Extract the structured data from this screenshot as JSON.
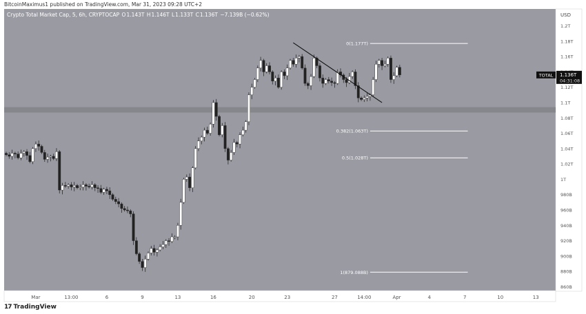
{
  "header": {
    "publisher": "BitcoinMaximus1 published on TradingView.com, Mar 31, 2023 09:28 UTC+2"
  },
  "legend": {
    "symbol": "Crypto Total Market Cap, 5, 6h, CRYPTOCAP",
    "open_label": "O",
    "open": "1.143T",
    "high_label": "H",
    "high": "1.146T",
    "low_label": "L",
    "low": "1.133T",
    "close_label": "C",
    "close": "1.136T",
    "change": "−7.139B (−0.62%)"
  },
  "footer": {
    "logo_icon": "tradingview-logo-icon",
    "brand": "TradingView"
  },
  "colors": {
    "background": "#9a9aa3",
    "up": "#ffffff",
    "down": "#222222",
    "support_band": "#82828a",
    "fib_line": "#ffffff"
  },
  "chart_data": {
    "type": "candlestick",
    "currency": "USD",
    "y_unit": "T",
    "ylim": [
      0.855,
      1.222
    ],
    "y_ticks": [
      {
        "value": 0.86,
        "label": "860B"
      },
      {
        "value": 0.88,
        "label": "880B"
      },
      {
        "value": 0.9,
        "label": "900B"
      },
      {
        "value": 0.92,
        "label": "920B"
      },
      {
        "value": 0.94,
        "label": "940B"
      },
      {
        "value": 0.96,
        "label": "960B"
      },
      {
        "value": 0.98,
        "label": "980B"
      },
      {
        "value": 1.0,
        "label": "1T"
      },
      {
        "value": 1.02,
        "label": "1.02T"
      },
      {
        "value": 1.04,
        "label": "1.04T"
      },
      {
        "value": 1.06,
        "label": "1.06T"
      },
      {
        "value": 1.08,
        "label": "1.08T"
      },
      {
        "value": 1.1,
        "label": "1.1T"
      },
      {
        "value": 1.12,
        "label": "1.12T"
      },
      {
        "value": 1.14,
        "label": "1.14T"
      },
      {
        "value": 1.16,
        "label": "1.16T"
      },
      {
        "value": 1.18,
        "label": "1.18T"
      },
      {
        "value": 1.2,
        "label": "1.2T"
      }
    ],
    "x_ticks": [
      {
        "t": 10,
        "label": "Mar"
      },
      {
        "t": 22,
        "label": "13:00"
      },
      {
        "t": 34,
        "label": "6"
      },
      {
        "t": 46,
        "label": "9"
      },
      {
        "t": 58,
        "label": "13"
      },
      {
        "t": 70,
        "label": "16"
      },
      {
        "t": 83,
        "label": "20"
      },
      {
        "t": 95,
        "label": "23"
      },
      {
        "t": 111,
        "label": "27"
      },
      {
        "t": 121,
        "label": "14:00"
      },
      {
        "t": 132,
        "label": "Apr"
      },
      {
        "t": 143,
        "label": "4"
      },
      {
        "t": 155,
        "label": "7"
      },
      {
        "t": 167,
        "label": "10"
      },
      {
        "t": 179,
        "label": "13"
      }
    ],
    "x_range": [
      0,
      185
    ],
    "price_label": {
      "symbol": "TOTAL",
      "value": "1.136T",
      "countdown": "04:31:08",
      "y": 1.136
    },
    "support_zone": [
      1.087,
      1.094
    ],
    "trendline": [
      {
        "t": 97,
        "y": 1.178
      },
      {
        "t": 127,
        "y": 1.1
      }
    ],
    "fib_levels": [
      {
        "ratio": "0",
        "label": "0(1.177T)",
        "value": 1.177
      },
      {
        "ratio": "0.382",
        "label": "0.382(1.063T)",
        "value": 1.063
      },
      {
        "ratio": "0.5",
        "label": "0.5(1.028T)",
        "value": 1.028
      },
      {
        "ratio": "1",
        "label": "1(879.088B)",
        "value": 0.879
      }
    ],
    "fib_t_start": 123,
    "fib_t_end": 156,
    "closes": [
      1.032,
      1.03,
      1.034,
      1.033,
      1.028,
      1.034,
      1.036,
      1.031,
      1.023,
      1.04,
      1.046,
      1.043,
      1.035,
      1.026,
      1.029,
      1.03,
      1.027,
      1.036,
      0.986,
      0.992,
      0.991,
      0.993,
      0.99,
      0.992,
      0.989,
      0.99,
      0.993,
      0.991,
      0.99,
      0.993,
      0.989,
      0.988,
      0.983,
      0.987,
      0.985,
      0.98,
      0.974,
      0.971,
      0.968,
      0.962,
      0.96,
      0.959,
      0.955,
      0.92,
      0.903,
      0.893,
      0.885,
      0.896,
      0.904,
      0.91,
      0.905,
      0.908,
      0.912,
      0.915,
      0.92,
      0.919,
      0.925,
      0.925,
      0.94,
      0.97,
      1.0,
      1.003,
      0.989,
      1.015,
      1.04,
      1.05,
      1.055,
      1.064,
      1.06,
      1.072,
      1.1,
      1.082,
      1.058,
      1.07,
      1.04,
      1.025,
      1.035,
      1.048,
      1.046,
      1.058,
      1.064,
      1.075,
      1.11,
      1.12,
      1.13,
      1.145,
      1.155,
      1.14,
      1.148,
      1.14,
      1.128,
      1.132,
      1.12,
      1.14,
      1.135,
      1.145,
      1.155,
      1.15,
      1.158,
      1.16,
      1.145,
      1.125,
      1.122,
      1.134,
      1.158,
      1.148,
      1.132,
      1.125,
      1.13,
      1.128,
      1.126,
      1.125,
      1.14,
      1.136,
      1.13,
      1.126,
      1.134,
      1.14,
      1.122,
      1.106,
      1.104,
      1.106,
      1.108,
      1.11,
      1.13,
      1.15,
      1.155,
      1.148,
      1.15,
      1.158,
      1.13,
      1.135,
      1.146,
      1.136
    ]
  }
}
